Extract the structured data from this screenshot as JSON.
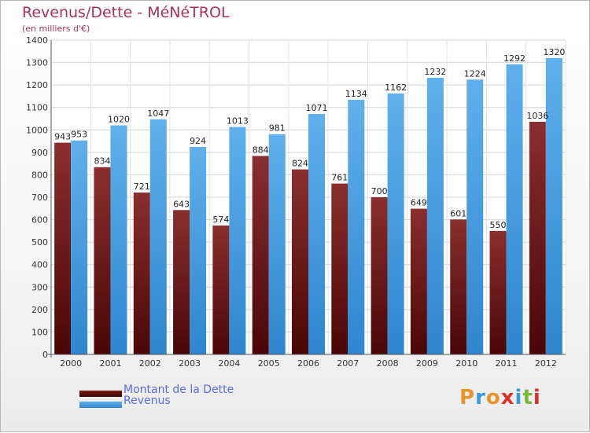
{
  "title": "Revenus/Dette - MéNéTROL",
  "subtitle": "(en milliers d'€)",
  "legend": [
    {
      "label": "Montant de la Dette",
      "color": "#6b1616"
    },
    {
      "label": "Revenus",
      "color": "#4a9fe0"
    }
  ],
  "brand": {
    "letters": [
      "P",
      "r",
      "o",
      "x",
      "i",
      "t",
      "i"
    ],
    "colors": [
      "#e8962b",
      "#3a9ad9",
      "#e8962b",
      "#d9342b",
      "#3a9ad9",
      "#7ab83a",
      "#d9342b"
    ]
  },
  "chart_data": {
    "type": "bar",
    "categories": [
      "2000",
      "2001",
      "2002",
      "2003",
      "2004",
      "2005",
      "2006",
      "2007",
      "2008",
      "2009",
      "2010",
      "2011",
      "2012"
    ],
    "series": [
      {
        "name": "Montant de la Dette",
        "values": [
          943,
          834,
          721,
          643,
          574,
          884,
          824,
          761,
          700,
          649,
          601,
          550,
          1036
        ],
        "color": "#6b1616"
      },
      {
        "name": "Revenus",
        "values": [
          953,
          1020,
          1047,
          924,
          1013,
          981,
          1071,
          1134,
          1162,
          1232,
          1224,
          1292,
          1320
        ],
        "color": "#4a9fe0"
      }
    ],
    "ylim": [
      0,
      1400
    ],
    "yticks": [
      0,
      100,
      200,
      300,
      400,
      500,
      600,
      700,
      800,
      900,
      1000,
      1100,
      1200,
      1300,
      1400
    ],
    "grid": true
  }
}
